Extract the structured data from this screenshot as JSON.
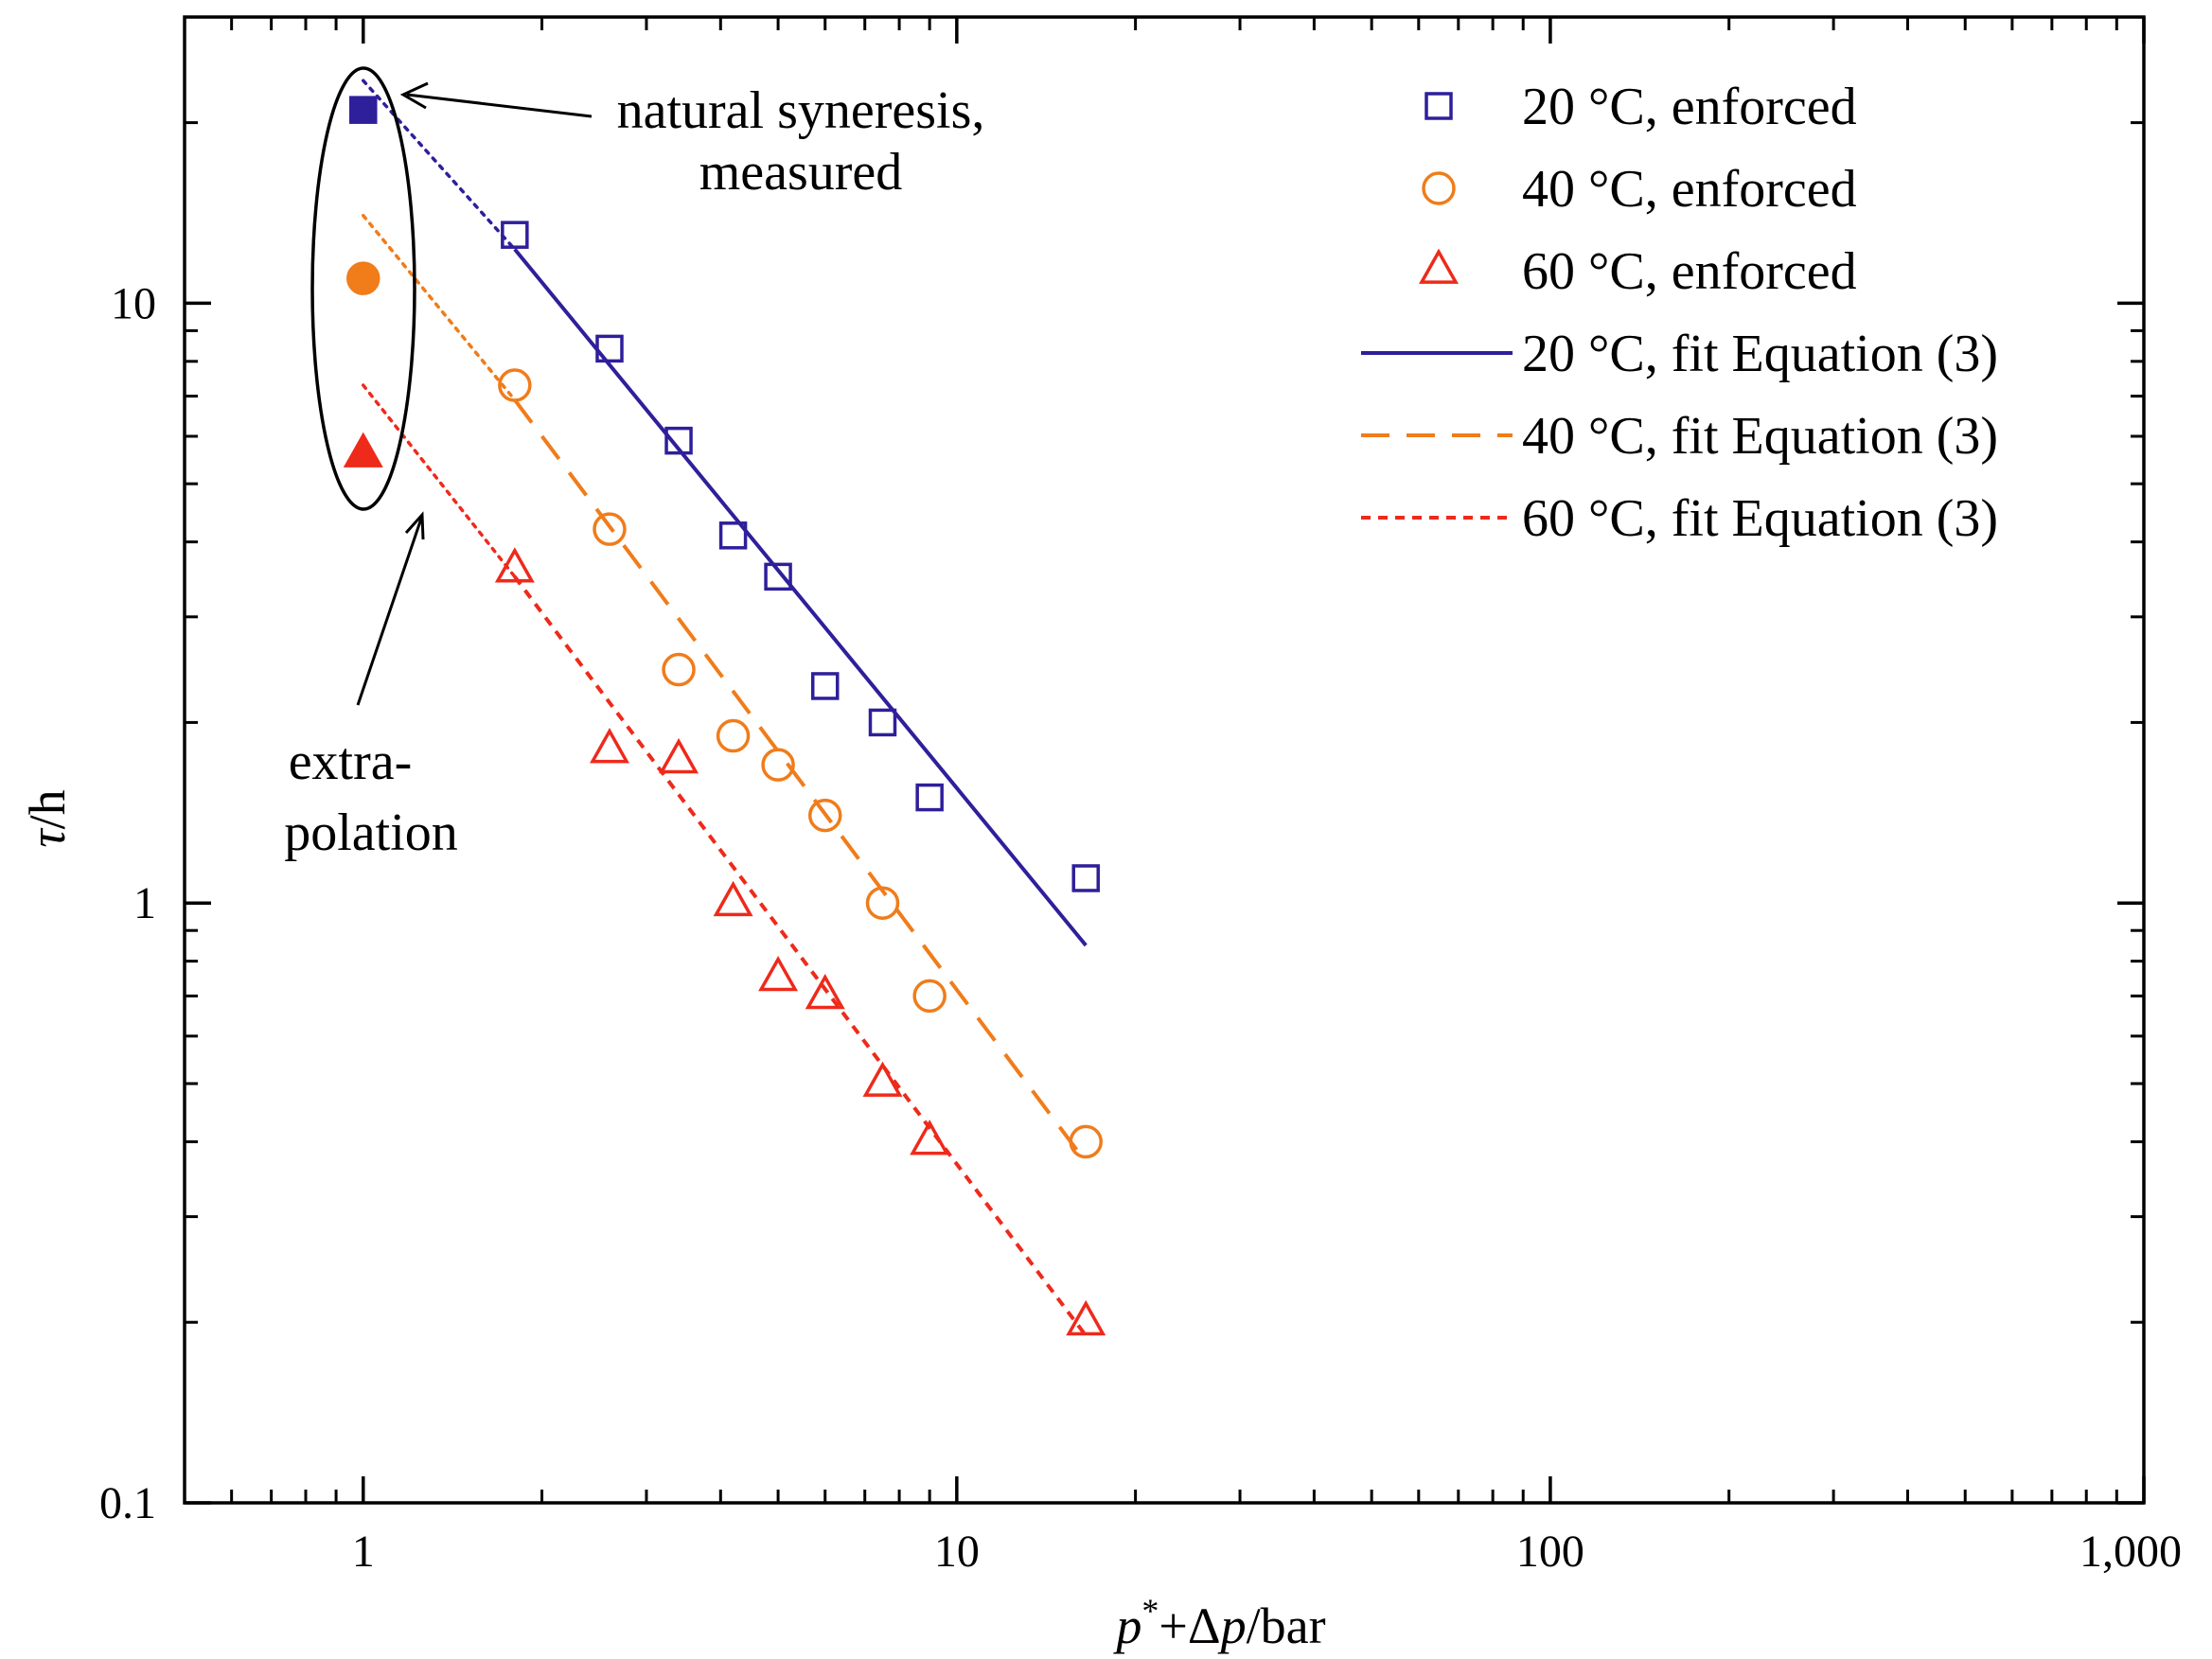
{
  "chart_data": {
    "type": "scatter",
    "title": "",
    "xlabel": {
      "p": "p",
      "sup": "*",
      "rest": "+Δ",
      "p2": "p",
      "unit": "/bar"
    },
    "ylabel": {
      "tau": "τ",
      "unit": "/h"
    },
    "xscale": "log",
    "yscale": "log",
    "xlim": [
      0.5,
      1000
    ],
    "ylim": [
      0.1,
      30
    ],
    "x_ticks": [
      {
        "value": 1,
        "label": "1"
      },
      {
        "value": 10,
        "label": "10"
      },
      {
        "value": 100,
        "label": "100"
      },
      {
        "value": 1000,
        "label": "1,000"
      }
    ],
    "y_ticks": [
      {
        "value": 0.1,
        "label": "0.1"
      },
      {
        "value": 1,
        "label": "1"
      },
      {
        "value": 10,
        "label": "10"
      }
    ],
    "series": [
      {
        "name": "20 °C, enforced",
        "marker": "square",
        "color": "#2e1f9a",
        "x": [
          1.8,
          2.6,
          3.4,
          4.2,
          5.0,
          6.0,
          7.5,
          9.0,
          16.5
        ],
        "y": [
          13.0,
          8.4,
          5.9,
          4.1,
          3.5,
          2.3,
          2.0,
          1.5,
          1.1
        ]
      },
      {
        "name": "40 °C, enforced",
        "marker": "circle",
        "color": "#f07c1a",
        "x": [
          1.8,
          2.6,
          3.4,
          4.2,
          5.0,
          6.0,
          7.5,
          9.0,
          16.5
        ],
        "y": [
          7.3,
          4.2,
          2.45,
          1.9,
          1.7,
          1.4,
          1.0,
          0.7,
          0.4
        ]
      },
      {
        "name": "60 °C, enforced",
        "marker": "triangle",
        "color": "#ee2a1b",
        "x": [
          1.8,
          2.6,
          3.4,
          4.2,
          5.0,
          6.0,
          7.5,
          9.0,
          16.5
        ],
        "y": [
          3.6,
          1.8,
          1.73,
          1.0,
          0.75,
          0.7,
          0.5,
          0.4,
          0.2
        ]
      },
      {
        "name": "natural syneresis, measured",
        "markers": [
          {
            "x": 1,
            "y": 21.0,
            "marker": "square",
            "color": "#2e1f9a"
          },
          {
            "x": 1,
            "y": 11.0,
            "marker": "circle",
            "color": "#f07c1a"
          },
          {
            "x": 1,
            "y": 5.6,
            "marker": "triangle",
            "color": "#ee2a1b"
          }
        ]
      }
    ],
    "fits": [
      {
        "name": "20 °C, fit Equation (3)",
        "style": "solid",
        "color": "#2e1f9a",
        "x": [
          1.8,
          16.5
        ],
        "y": [
          12.3,
          0.85
        ]
      },
      {
        "name": "40 °C, fit Equation (3)",
        "style": "dashed",
        "color": "#f07c1a",
        "x": [
          1.8,
          16.5
        ],
        "y": [
          6.9,
          0.37
        ]
      },
      {
        "name": "60 °C, fit Equation (3)",
        "style": "dotted",
        "color": "#ee2a1b",
        "x": [
          1.8,
          16.5
        ],
        "y": [
          3.5,
          0.19
        ]
      }
    ],
    "extrapolations": [
      {
        "color": "#2e1f9a",
        "x": [
          1,
          1.8
        ],
        "y": [
          23.5,
          12.3
        ]
      },
      {
        "color": "#f07c1a",
        "x": [
          1,
          1.8
        ],
        "y": [
          14.0,
          6.9
        ]
      },
      {
        "color": "#ee2a1b",
        "x": [
          1,
          1.8
        ],
        "y": [
          7.3,
          3.5
        ]
      }
    ],
    "legend": {
      "position": "top-right",
      "entries": [
        {
          "label": "20 °C, enforced",
          "marker": "square",
          "color": "#2e1f9a"
        },
        {
          "label": "40 °C, enforced",
          "marker": "circle",
          "color": "#f07c1a"
        },
        {
          "label": "60 °C, enforced",
          "marker": "triangle",
          "color": "#ee2a1b"
        },
        {
          "label": "20 °C, fit Equation (3)",
          "line": "solid",
          "color": "#2e1f9a"
        },
        {
          "label": "40 °C, fit Equation (3)",
          "line": "dashed",
          "color": "#f07c1a"
        },
        {
          "label": "60 °C, fit Equation (3)",
          "line": "dotted",
          "color": "#ee2a1b"
        }
      ]
    },
    "annotations": {
      "natural": [
        "natural syneresis,",
        "measured"
      ],
      "extrapolation": [
        "extra-",
        "polation"
      ]
    }
  }
}
